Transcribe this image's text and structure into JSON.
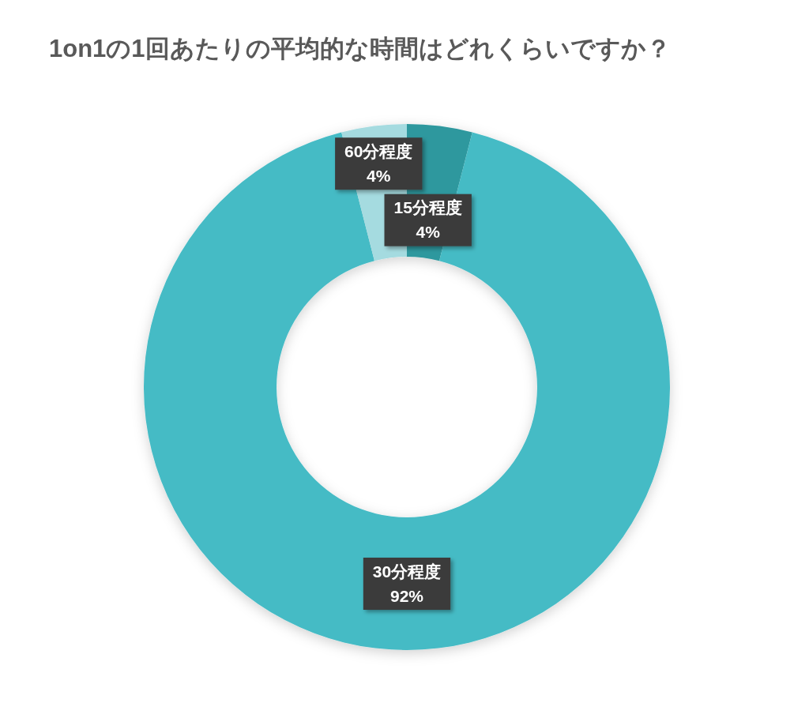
{
  "chart_data": {
    "type": "donut",
    "title": "1on1の1回あたりの平均的な時間はどれくらいですか？",
    "categories": [
      "15分程度",
      "30分程度",
      "60分程度"
    ],
    "values": [
      4,
      92,
      4
    ],
    "value_labels": [
      "4%",
      "92%",
      "4%"
    ],
    "colors": [
      "#2f989e",
      "#45bbc5",
      "#a5dbe0"
    ]
  }
}
